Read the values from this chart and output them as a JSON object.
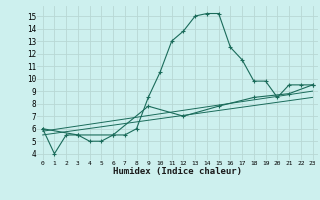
{
  "title": "",
  "xlabel": "Humidex (Indice chaleur)",
  "background_color": "#cdf0ee",
  "grid_color": "#b8d8d4",
  "line_color": "#1a6b5a",
  "xlim": [
    -0.5,
    23.5
  ],
  "ylim": [
    3.5,
    15.8
  ],
  "yticks": [
    4,
    5,
    6,
    7,
    8,
    9,
    10,
    11,
    12,
    13,
    14,
    15
  ],
  "xticks": [
    0,
    1,
    2,
    3,
    4,
    5,
    6,
    7,
    8,
    9,
    10,
    11,
    12,
    13,
    14,
    15,
    16,
    17,
    18,
    19,
    20,
    21,
    22,
    23
  ],
  "xtick_labels": [
    "0",
    "1",
    "2",
    "3",
    "4",
    "5",
    "6",
    "7",
    "8",
    "9",
    "10",
    "11",
    "12",
    "13",
    "14",
    "15",
    "16",
    "17",
    "18",
    "19",
    "20",
    "21",
    "22",
    "23"
  ],
  "series1_x": [
    0,
    1,
    2,
    3,
    4,
    5,
    6,
    7,
    8,
    9,
    10,
    11,
    12,
    13,
    14,
    15,
    16,
    17,
    18,
    19,
    20,
    21,
    22,
    23
  ],
  "series1_y": [
    6.0,
    4.0,
    5.5,
    5.5,
    5.0,
    5.0,
    5.5,
    5.5,
    6.0,
    8.5,
    10.5,
    13.0,
    13.8,
    15.0,
    15.2,
    15.2,
    12.5,
    11.5,
    9.8,
    9.8,
    8.5,
    9.5,
    9.5,
    9.5
  ],
  "series2_x": [
    0,
    3,
    6,
    9,
    12,
    15,
    18,
    21,
    23
  ],
  "series2_y": [
    6.0,
    5.5,
    5.5,
    7.8,
    7.0,
    7.8,
    8.5,
    8.8,
    9.5
  ],
  "series3_x": [
    0,
    23
  ],
  "series3_y": [
    5.8,
    9.0
  ],
  "series4_x": [
    0,
    23
  ],
  "series4_y": [
    5.5,
    8.5
  ]
}
